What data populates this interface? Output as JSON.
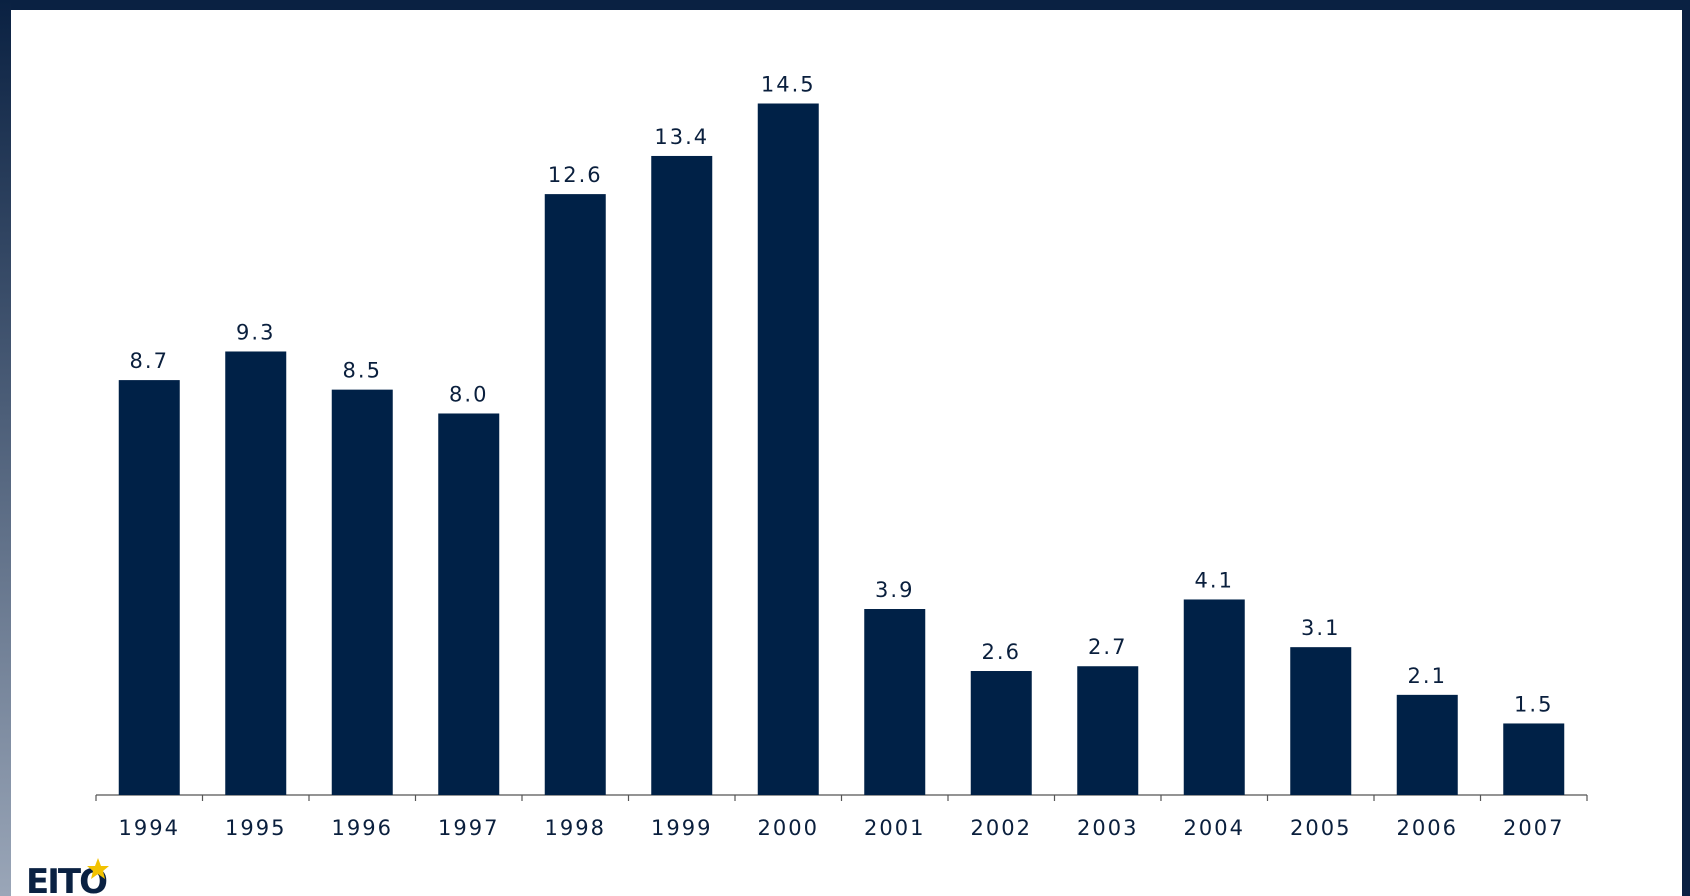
{
  "chart_data": {
    "type": "bar",
    "categories": [
      "1994",
      "1995",
      "1996",
      "1997",
      "1998",
      "1999",
      "2000",
      "2001",
      "2002",
      "2003",
      "2004",
      "2005",
      "2006",
      "2007"
    ],
    "values": [
      8.7,
      9.3,
      8.5,
      8.0,
      12.6,
      13.4,
      14.5,
      3.9,
      2.6,
      2.7,
      4.1,
      3.1,
      2.1,
      1.5
    ],
    "value_labels": [
      "8.7",
      "9.3",
      "8.5",
      "8.0",
      "12.6",
      "13.4",
      "14.5",
      "3.9",
      "2.6",
      "2.7",
      "4.1",
      "3.1",
      "2.1",
      "1.5"
    ],
    "color": "#002147",
    "logo": "EITO"
  }
}
